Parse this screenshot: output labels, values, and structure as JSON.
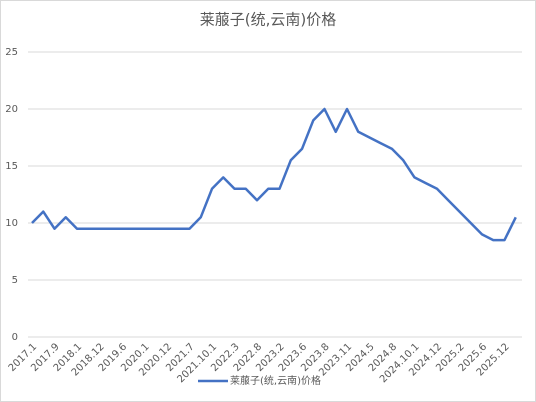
{
  "chart_data": {
    "type": "line",
    "title": "莱菔子(统,云南)价格",
    "categories": [
      "2017.1",
      null,
      "2017.9",
      null,
      "2018.1",
      null,
      "2018.12",
      null,
      "2019.6",
      null,
      "2020.1",
      null,
      "2020.12",
      null,
      "2021.7",
      null,
      "2021.10.1",
      null,
      "2022.3",
      null,
      "2022.8",
      null,
      "2023.2",
      null,
      "2023.6",
      null,
      "2023.8",
      null,
      "2023.11",
      null,
      "2024.5",
      null,
      "2024.8",
      null,
      "2024.10.1",
      null,
      "2024.12",
      null,
      "2025.2",
      null,
      "2025.6",
      null,
      "2025.12",
      null
    ],
    "series": [
      {
        "name": "莱菔子(统,云南)价格",
        "color": "#4472c4",
        "values": [
          10,
          11,
          9.5,
          10.5,
          9.5,
          9.5,
          9.5,
          9.5,
          9.5,
          9.5,
          9.5,
          9.5,
          9.5,
          9.5,
          9.5,
          10.5,
          13,
          14,
          13,
          13,
          12,
          13,
          13,
          15.5,
          16.5,
          19,
          20,
          18,
          20,
          18,
          17.5,
          17,
          16.5,
          15.5,
          14,
          13.5,
          13,
          12,
          11,
          10,
          9,
          8.5,
          8.5,
          10.5
        ]
      }
    ],
    "ylim": [
      0,
      25
    ],
    "yticks": [
      0,
      5,
      10,
      15,
      20,
      25
    ],
    "grid": true,
    "legend": "bottom"
  }
}
